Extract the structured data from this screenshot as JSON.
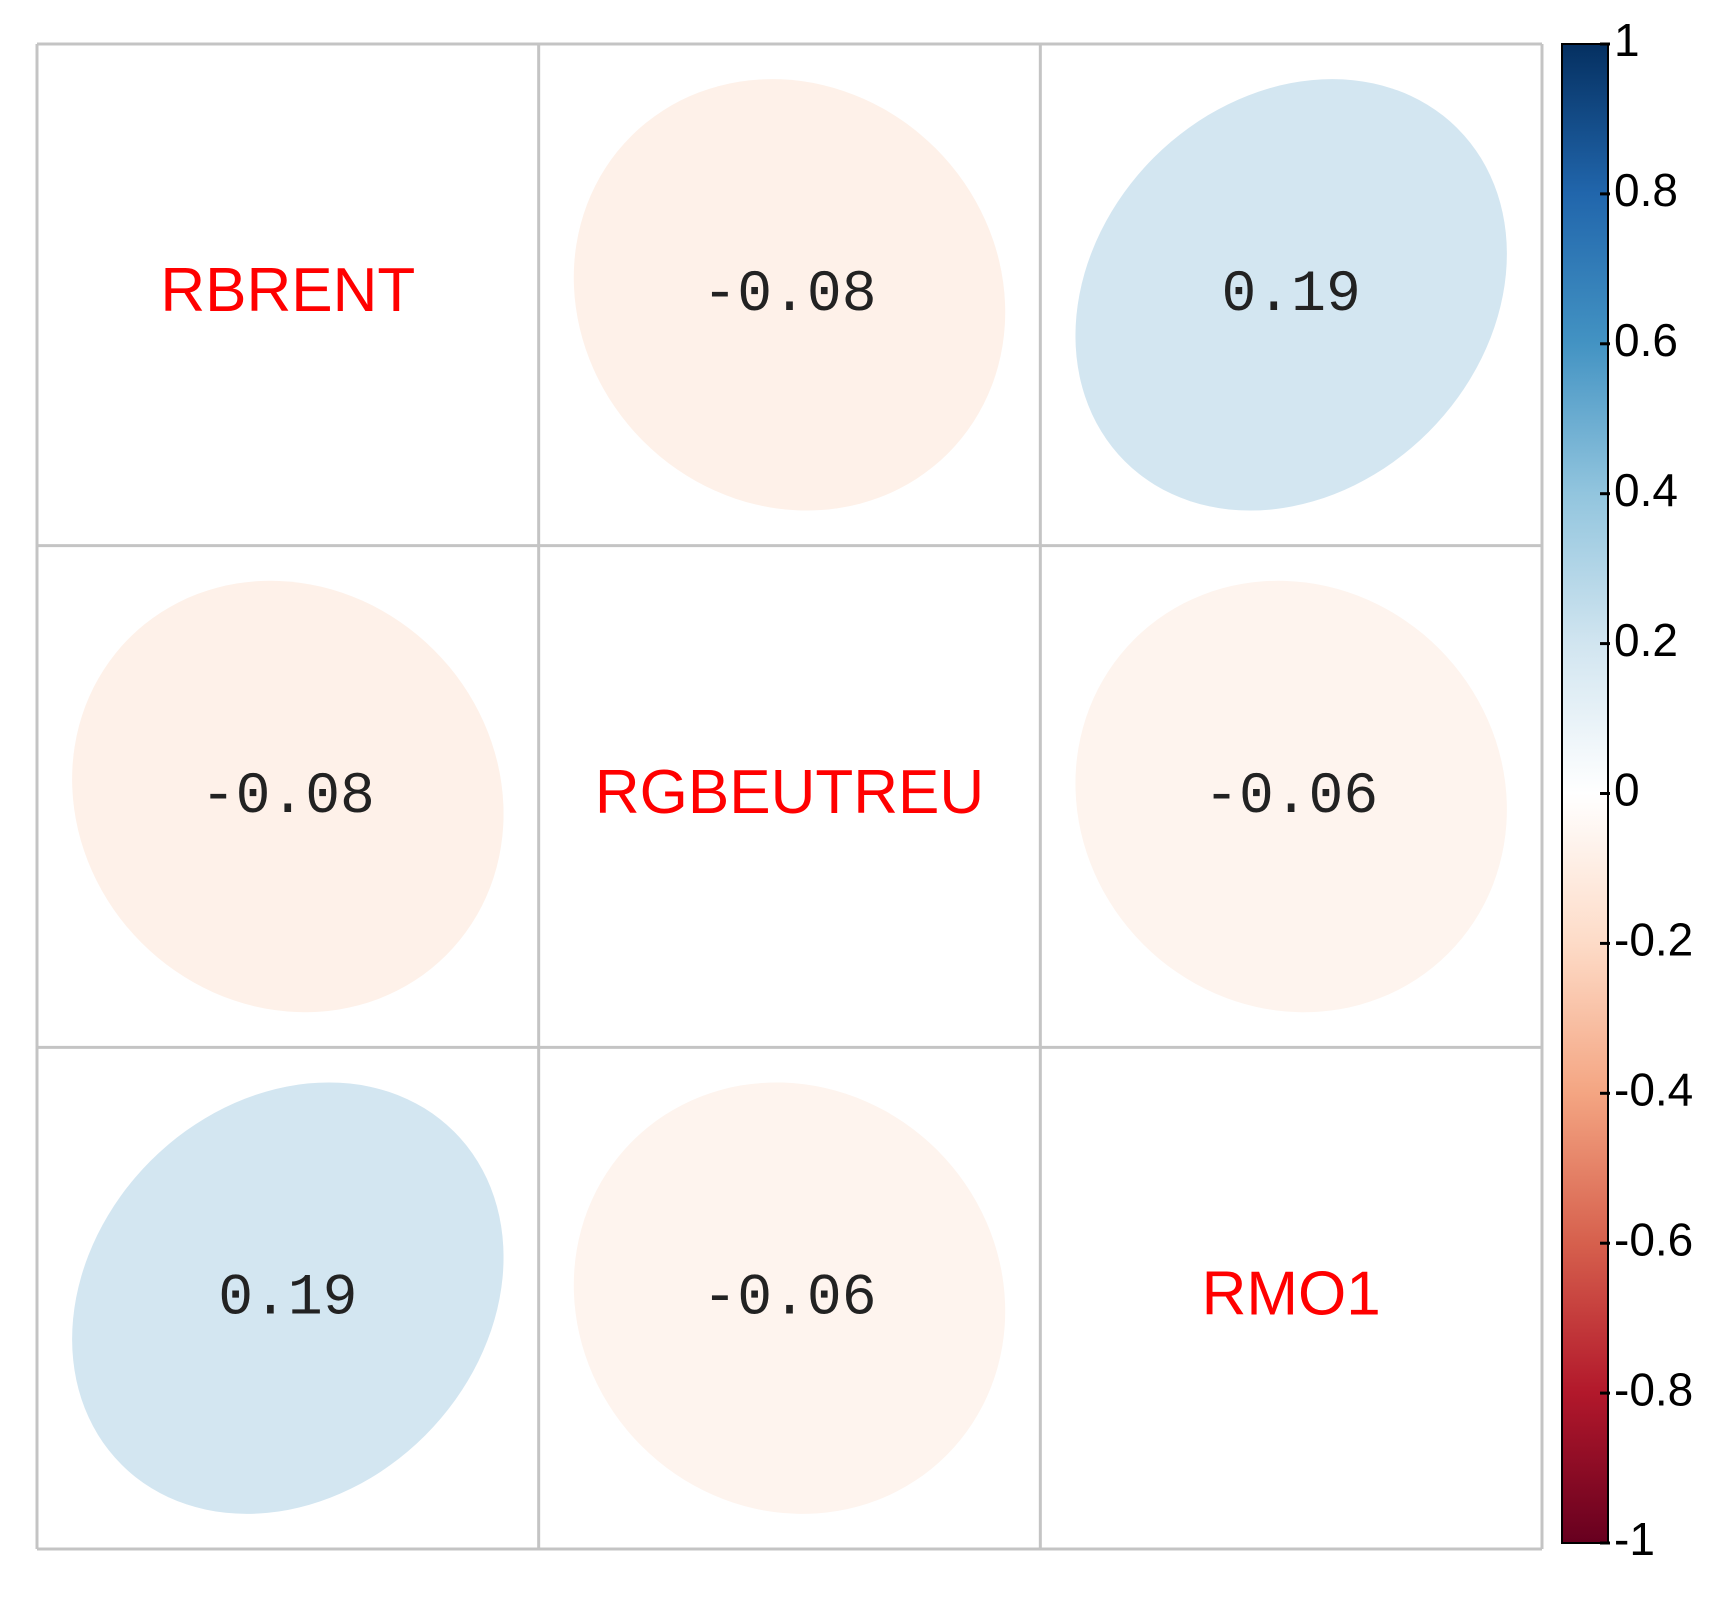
{
  "chart_data": {
    "type": "corrplot",
    "variables": [
      "RBRENT",
      "RGBEUTREU",
      "RMO1"
    ],
    "matrix": [
      [
        null,
        -0.08,
        0.19
      ],
      [
        -0.08,
        null,
        -0.06
      ],
      [
        0.19,
        -0.06,
        null
      ]
    ],
    "zlim": [
      -1,
      1
    ],
    "zticks": [
      1,
      0.8,
      0.6,
      0.4,
      0.2,
      0,
      -0.2,
      -0.4,
      -0.6,
      -0.8,
      -1
    ],
    "colors": [
      "#67001F",
      "#B2182B",
      "#D6604D",
      "#F4A582",
      "#FDDBC7",
      "#FFFFFF",
      "#D1E5F0",
      "#92C5DE",
      "#4393C3",
      "#2166AC",
      "#053061"
    ],
    "label_color": "#FF0000",
    "grid": true
  }
}
